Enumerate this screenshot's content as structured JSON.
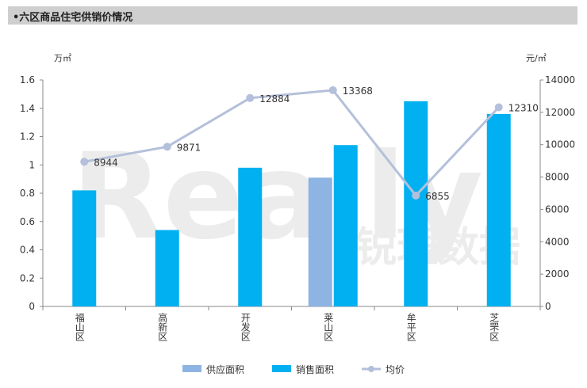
{
  "header": {
    "title": "•六区商品住宅供销价情况"
  },
  "watermark": {
    "text": "Really",
    "cn_text": "锐理数据"
  },
  "chart_data": {
    "type": "bar",
    "categories": [
      "福山区",
      "高新区",
      "开发区",
      "莱山区",
      "牟平区",
      "芝罘区"
    ],
    "series": [
      {
        "name": "供应面积",
        "type": "bar",
        "axis": "left",
        "color": "#8eb4e3",
        "values": [
          null,
          null,
          null,
          0.91,
          null,
          null
        ]
      },
      {
        "name": "销售面积",
        "type": "bar",
        "axis": "left",
        "color": "#00b0f0",
        "values": [
          0.82,
          0.54,
          0.98,
          1.14,
          1.45,
          1.36
        ]
      },
      {
        "name": "均价",
        "type": "line",
        "axis": "right",
        "color": "#b4c0db",
        "values": [
          8944,
          9871,
          12884,
          13368,
          6855,
          12310
        ]
      }
    ],
    "y_left": {
      "unit": "万㎡",
      "min": 0,
      "max": 1.6,
      "ticks": [
        "0",
        "0.2",
        "0.4",
        "0.6",
        "0.8",
        "1",
        "1.2",
        "1.4",
        "1.6"
      ]
    },
    "y_right": {
      "unit": "元/㎡",
      "min": 0,
      "max": 14000,
      "ticks": [
        "0",
        "2000",
        "4000",
        "6000",
        "8000",
        "10000",
        "12000",
        "14000"
      ]
    },
    "legend_position": "bottom",
    "grid": false
  }
}
